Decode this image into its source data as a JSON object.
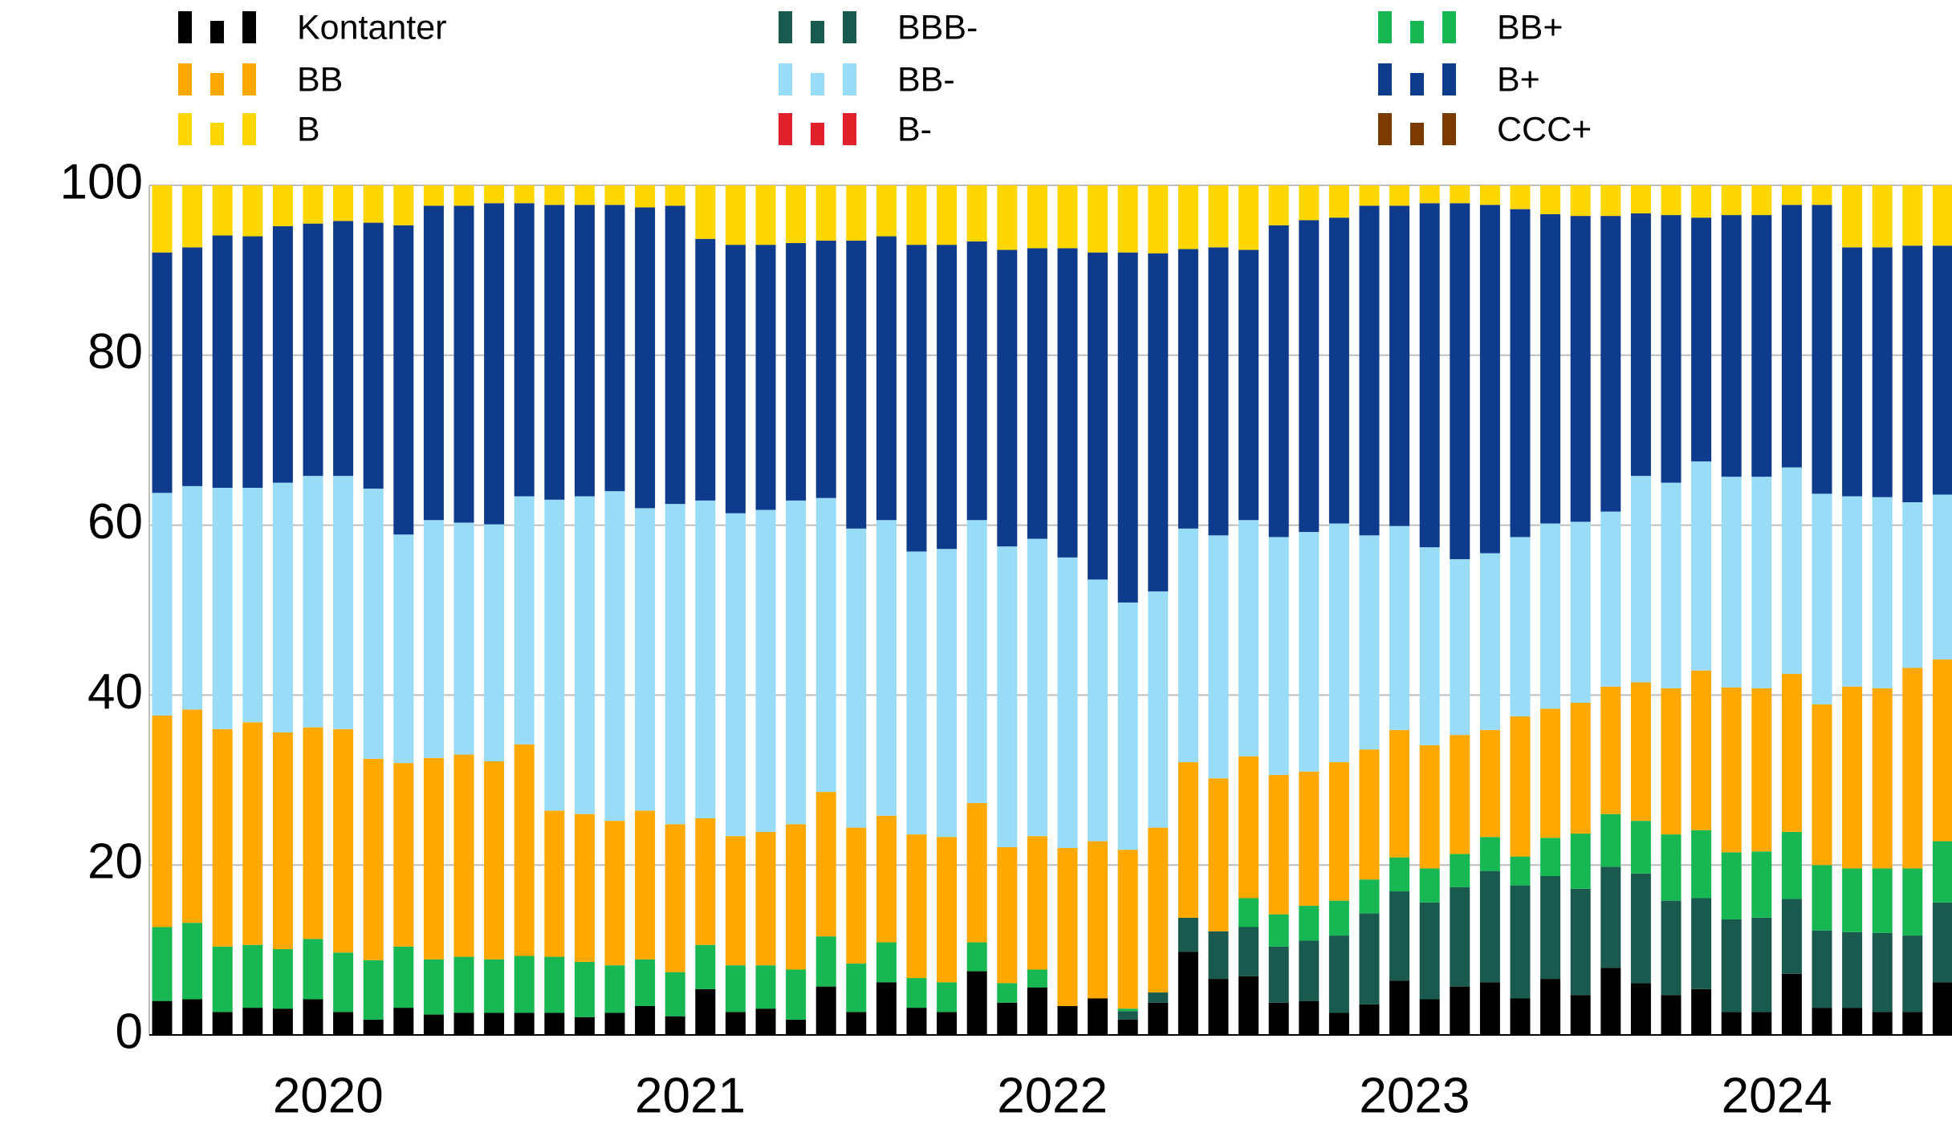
{
  "chart_data": {
    "type": "stacked-bar",
    "categories": [
      null,
      null,
      null,
      null,
      null,
      null,
      null,
      null,
      null,
      null,
      null,
      null,
      null,
      null,
      null,
      null,
      null,
      null,
      null,
      null,
      null,
      null,
      null,
      null,
      null,
      null,
      null,
      null,
      null,
      null,
      null,
      null,
      null,
      null,
      null,
      null,
      null,
      null,
      null,
      null,
      null,
      null,
      null,
      null,
      null,
      null,
      null,
      null,
      null,
      null,
      null,
      null,
      null,
      null,
      null,
      null,
      null,
      null,
      null,
      null
    ],
    "year_labels": [
      "2020",
      "2021",
      "2022",
      "2023",
      "2024"
    ],
    "ylim": [
      0,
      100
    ],
    "yticks": [
      0,
      20,
      40,
      60,
      80,
      100
    ],
    "grid": true,
    "series": [
      {
        "name": "Kontanter",
        "color": "#000000",
        "values": [
          4.0,
          4.2,
          2.7,
          3.2,
          3.1,
          4.2,
          2.7,
          1.8,
          3.2,
          2.4,
          2.6,
          2.6,
          2.6,
          2.6,
          2.1,
          2.6,
          3.4,
          2.2,
          5.4,
          2.7,
          3.1,
          1.8,
          5.7,
          2.7,
          6.2,
          3.2,
          2.7,
          7.5,
          3.8,
          5.6,
          3.4,
          4.3,
          1.8,
          3.8,
          9.8,
          6.6,
          6.9,
          3.8,
          4.0,
          2.6,
          3.6,
          6.4,
          4.2,
          5.7,
          6.2,
          4.3,
          6.6,
          4.7,
          7.9,
          6.1,
          4.7,
          5.4,
          2.7,
          2.7,
          7.2,
          3.2,
          3.2,
          2.7,
          2.7,
          6.2
        ]
      },
      {
        "name": "BBB-",
        "color": "#1a5a4e",
        "values": [
          0,
          0,
          0,
          0,
          0,
          0,
          0,
          0,
          0,
          0,
          0,
          0,
          0,
          0,
          0,
          0,
          0,
          0,
          0,
          0,
          0,
          0,
          0,
          0,
          0,
          0,
          0,
          0,
          0,
          0,
          0,
          0,
          1.0,
          1.2,
          4.0,
          5.6,
          5.8,
          6.6,
          7.1,
          9.1,
          10.7,
          10.5,
          11.4,
          11.7,
          13.1,
          13.3,
          12.1,
          12.5,
          11.9,
          12.9,
          11.1,
          10.7,
          10.9,
          11.1,
          8.8,
          9.1,
          8.9,
          9.3,
          9.0,
          9.4
        ]
      },
      {
        "name": "BB+",
        "color": "#17b853",
        "values": [
          8.7,
          9.0,
          7.7,
          7.4,
          7.0,
          7.1,
          7.0,
          7.0,
          7.2,
          6.5,
          6.6,
          6.3,
          6.7,
          6.6,
          6.5,
          5.6,
          5.5,
          5.2,
          5.2,
          5.5,
          5.1,
          5.9,
          5.9,
          5.7,
          4.7,
          3.5,
          3.5,
          3.4,
          2.3,
          2.1,
          0,
          0,
          0.3,
          0,
          0,
          0,
          3.4,
          3.8,
          4.1,
          4.1,
          4.0,
          4.0,
          4.0,
          3.9,
          4.0,
          3.4,
          4.5,
          6.5,
          6.2,
          6.2,
          7.8,
          8.0,
          7.9,
          7.8,
          7.9,
          7.7,
          7.5,
          7.6,
          7.9,
          7.2
        ]
      },
      {
        "name": "BB",
        "color": "#ffa800",
        "values": [
          24.9,
          25.1,
          25.6,
          26.2,
          25.5,
          24.9,
          26.3,
          23.7,
          21.6,
          23.7,
          23.8,
          23.3,
          24.9,
          17.2,
          17.4,
          17.0,
          17.5,
          17.4,
          14.9,
          15.2,
          15.7,
          17.1,
          17.0,
          16.0,
          14.9,
          16.9,
          17.1,
          16.4,
          16.0,
          15.7,
          18.6,
          18.5,
          18.7,
          19.4,
          18.3,
          18.0,
          16.7,
          16.4,
          15.8,
          16.3,
          15.3,
          15.0,
          14.5,
          14.0,
          12.6,
          16.5,
          15.2,
          15.4,
          15.0,
          16.3,
          17.2,
          18.8,
          19.4,
          19.2,
          18.6,
          18.9,
          21.4,
          21.2,
          23.6,
          21.4
        ]
      },
      {
        "name": "BB-",
        "color": "#99dcf8",
        "values": [
          26.2,
          26.3,
          28.4,
          27.6,
          29.4,
          29.6,
          29.8,
          31.8,
          26.9,
          28.0,
          27.3,
          27.9,
          29.2,
          36.6,
          37.4,
          38.8,
          35.6,
          37.7,
          37.4,
          38.0,
          37.9,
          38.1,
          34.6,
          35.2,
          34.8,
          33.3,
          33.9,
          33.3,
          35.4,
          35.0,
          34.2,
          30.8,
          29.1,
          27.8,
          27.5,
          28.6,
          27.8,
          28.0,
          28.2,
          28.1,
          25.2,
          24.0,
          23.3,
          20.7,
          20.8,
          21.1,
          21.8,
          21.3,
          20.6,
          24.3,
          24.2,
          24.6,
          24.8,
          24.9,
          24.3,
          24.8,
          22.4,
          22.5,
          19.5,
          19.4
        ]
      },
      {
        "name": "B+",
        "color": "#0f3b8c",
        "values": [
          28.3,
          28.1,
          29.7,
          29.6,
          30.2,
          29.7,
          30.0,
          31.3,
          36.4,
          37.0,
          37.3,
          37.8,
          34.5,
          34.7,
          34.3,
          33.7,
          35.4,
          35.1,
          30.8,
          31.6,
          31.2,
          30.3,
          30.3,
          33.9,
          33.4,
          36.1,
          35.8,
          32.8,
          34.9,
          34.2,
          36.4,
          38.5,
          41.2,
          39.8,
          32.9,
          33.9,
          31.8,
          36.7,
          36.7,
          36.0,
          38.8,
          37.7,
          40.5,
          41.9,
          41.0,
          38.6,
          36.4,
          36.0,
          34.8,
          30.9,
          31.5,
          28.7,
          30.8,
          30.8,
          30.9,
          34.0,
          29.3,
          29.4,
          30.2,
          29.3
        ]
      },
      {
        "name": "B",
        "color": "#ffd700",
        "values": [
          7.9,
          7.3,
          5.9,
          6.0,
          4.8,
          4.5,
          4.2,
          4.4,
          4.7,
          2.4,
          2.4,
          2.1,
          2.1,
          2.3,
          2.3,
          2.3,
          2.6,
          2.4,
          6.3,
          7.0,
          7.0,
          6.8,
          6.5,
          6.5,
          6.0,
          7.0,
          7.0,
          6.6,
          7.6,
          7.4,
          7.4,
          7.9,
          7.9,
          8.0,
          7.5,
          7.3,
          7.6,
          4.7,
          4.1,
          3.8,
          2.4,
          2.4,
          2.1,
          2.1,
          2.3,
          2.8,
          3.4,
          3.6,
          3.6,
          3.3,
          3.5,
          3.8,
          3.5,
          3.5,
          2.3,
          2.3,
          7.3,
          7.3,
          7.1,
          7.1
        ]
      },
      {
        "name": "B-",
        "color": "#e0202b",
        "values": [
          0,
          0,
          0,
          0,
          0,
          0,
          0,
          0,
          0,
          0,
          0,
          0,
          0,
          0,
          0,
          0,
          0,
          0,
          0,
          0,
          0,
          0,
          0,
          0,
          0,
          0,
          0,
          0,
          0,
          0,
          0,
          0,
          0,
          0,
          0,
          0,
          0,
          0,
          0,
          0,
          0,
          0,
          0,
          0,
          0,
          0,
          0,
          0,
          0,
          0,
          0,
          0,
          0,
          0,
          0,
          0,
          0,
          0,
          0,
          0
        ]
      },
      {
        "name": "CCC+",
        "color": "#7a3a00",
        "values": [
          0,
          0,
          0,
          0,
          0,
          0,
          0,
          0,
          0,
          0,
          0,
          0,
          0,
          0,
          0,
          0,
          0,
          0,
          0,
          0,
          0,
          0,
          0,
          0,
          0,
          0,
          0,
          0,
          0,
          0,
          0,
          0,
          0,
          0,
          0,
          0,
          0,
          0,
          0,
          0,
          0,
          0,
          0,
          0,
          0,
          0,
          0,
          0,
          0,
          0,
          0,
          0,
          0,
          0,
          0,
          0,
          0,
          0,
          0,
          0
        ]
      }
    ]
  }
}
